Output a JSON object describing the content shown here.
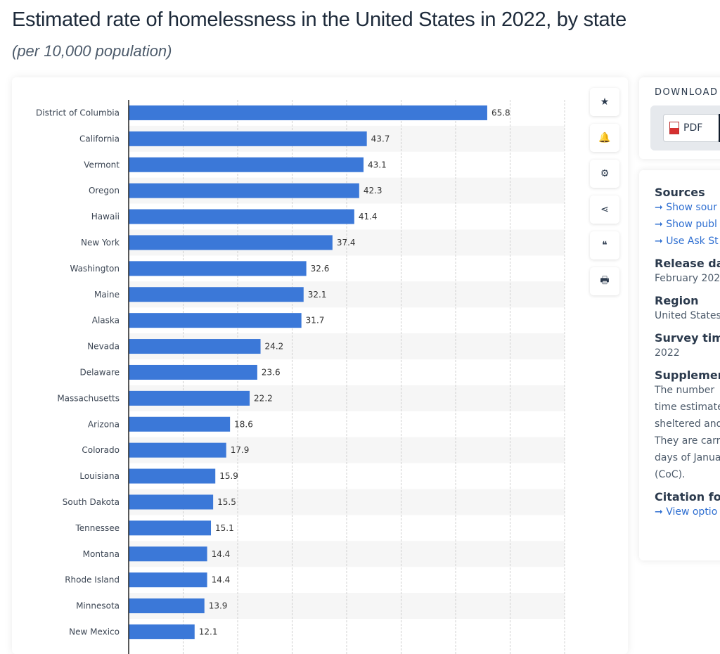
{
  "header": {
    "title": "Estimated rate of homelessness in the United States in 2022, by state",
    "subtitle": "(per 10,000 population)"
  },
  "toolbar": [
    {
      "icon": "star-icon",
      "glyph": "★"
    },
    {
      "icon": "bell-icon",
      "glyph": "🔔"
    },
    {
      "icon": "gear-icon",
      "glyph": "⚙"
    },
    {
      "icon": "share-icon",
      "glyph": "⋖"
    },
    {
      "icon": "quote-icon",
      "glyph": "❝"
    },
    {
      "icon": "print-icon",
      "glyph": "🖶"
    }
  ],
  "download": {
    "label": "DOWNLOAD",
    "pdf": "PDF",
    "plus": "+"
  },
  "info": {
    "sources_title": "Sources",
    "sources_links": [
      "Show sour",
      "Show publ",
      "Use Ask St"
    ],
    "release_title": "Release dat",
    "release_value": "February 202",
    "region_title": "Region",
    "region_value": "United States",
    "survey_title": "Survey time",
    "survey_value": "2022",
    "supp_title": "Supplemen",
    "supp_lines": [
      "The number",
      "time estimate",
      "sheltered and",
      "They are carr",
      "days of Janua",
      "(CoC)."
    ],
    "citation_title": "Citation for",
    "citation_link": "View optio"
  },
  "chart_data": {
    "type": "bar",
    "orientation": "horizontal",
    "title": "Estimated rate of homelessness in the United States in 2022, by state",
    "subtitle": "(per 10,000 population)",
    "xlim": [
      0,
      80
    ],
    "grid": true,
    "bar_color": "#3b78d8",
    "categories": [
      "District of Columbia",
      "California",
      "Vermont",
      "Oregon",
      "Hawaii",
      "New York",
      "Washington",
      "Maine",
      "Alaska",
      "Nevada",
      "Delaware",
      "Massachusetts",
      "Arizona",
      "Colorado",
      "Louisiana",
      "South Dakota",
      "Tennessee",
      "Montana",
      "Rhode Island",
      "Minnesota",
      "New Mexico"
    ],
    "values": [
      65.8,
      43.7,
      43.1,
      42.3,
      41.4,
      37.4,
      32.6,
      32.1,
      31.7,
      24.2,
      23.6,
      22.2,
      18.6,
      17.9,
      15.9,
      15.5,
      15.1,
      14.4,
      14.4,
      13.9,
      12.1
    ]
  }
}
